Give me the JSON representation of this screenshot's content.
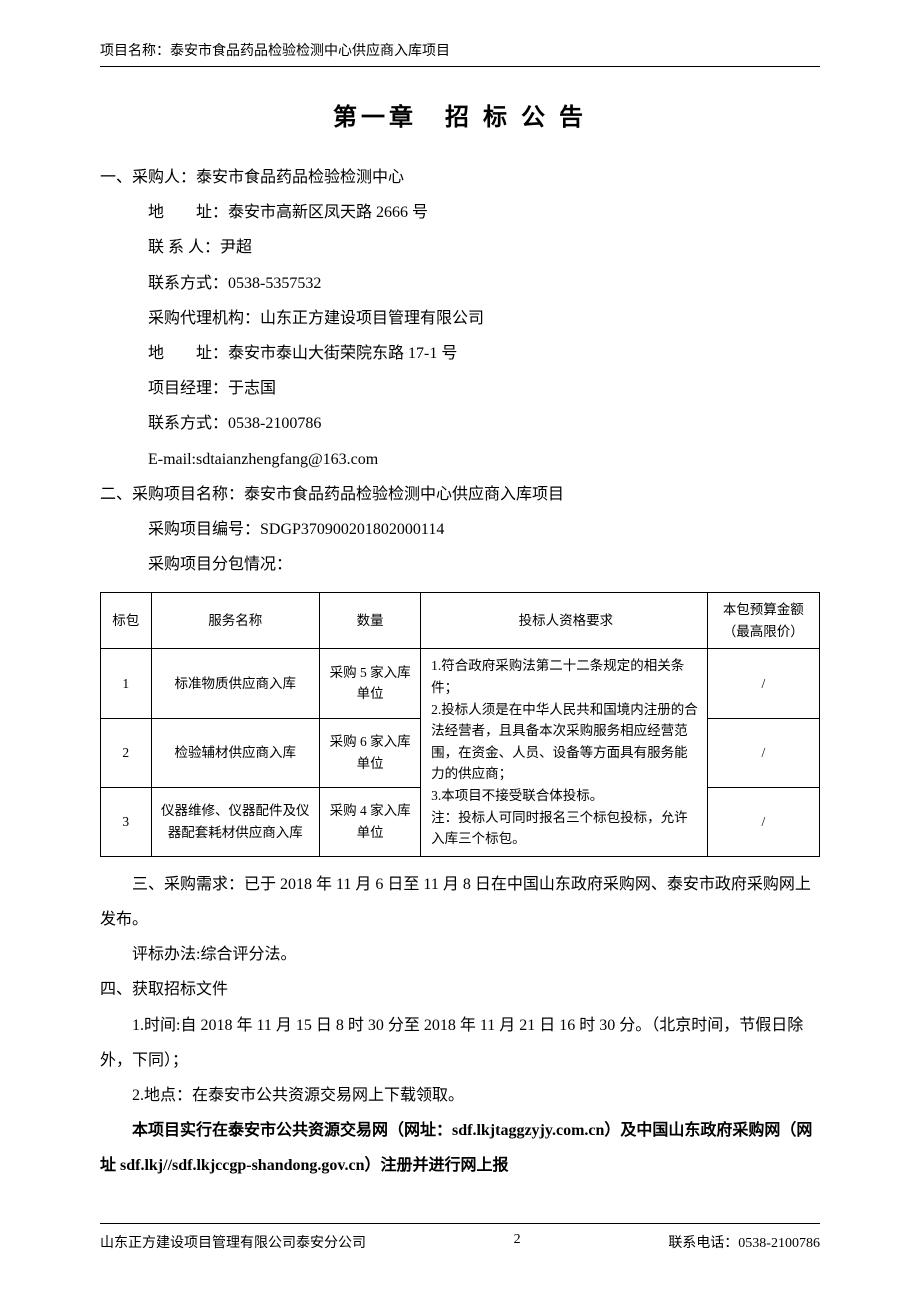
{
  "header": {
    "project_label": "项目名称：泰安市食品药品检验检测中心供应商入库项目"
  },
  "chapter_title": "第一章　招 标 公 告",
  "section1": {
    "line1": "一、采购人：泰安市食品药品检验检测中心",
    "addr": "地　　址：泰安市高新区凤天路 2666 号",
    "contact": "联 系 人：尹超",
    "phone": "联系方式：0538-5357532",
    "agency": "采购代理机构：山东正方建设项目管理有限公司",
    "agency_addr": "地　　址：泰安市泰山大街荣院东路 17-1 号",
    "pm": "项目经理：于志国",
    "agency_phone": "联系方式：0538-2100786",
    "email": "E-mail:sdtaianzhengfang@163.com"
  },
  "section2": {
    "line1": "二、采购项目名称：泰安市食品药品检验检测中心供应商入库项目",
    "code": "采购项目编号：SDGP370900201802000114",
    "split": "采购项目分包情况："
  },
  "table": {
    "headers": {
      "bp": "标包",
      "name": "服务名称",
      "qty": "数量",
      "req": "投标人资格要求",
      "budget": "本包预算金额（最高限价）"
    },
    "req_text": "1.符合政府采购法第二十二条规定的相关条件；\n2.投标人须是在中华人民共和国境内注册的合法经营者，且具备本次采购服务相应经营范围，在资金、人员、设备等方面具有服务能力的供应商；\n3.本项目不接受联合体投标。\n注：投标人可同时报名三个标包投标，允许入库三个标包。",
    "rows": [
      {
        "bp": "1",
        "name": "标准物质供应商入库",
        "qty": "采购 5 家入库单位",
        "budget": "/"
      },
      {
        "bp": "2",
        "name": "检验辅材供应商入库",
        "qty": "采购 6 家入库单位",
        "budget": "/"
      },
      {
        "bp": "3",
        "name": "仪器维修、仪器配件及仪器配套耗材供应商入库",
        "qty": "采购 4 家入库单位",
        "budget": "/"
      }
    ]
  },
  "section3": {
    "p1": "三、采购需求：已于 2018 年 11 月 6 日至 11 月 8 日在中国山东政府采购网、泰安市政府采购网上发布。",
    "p2": "评标办法:综合评分法。"
  },
  "section4": {
    "title": "四、获取招标文件",
    "p1": "1.时间:自 2018 年 11 月 15 日 8 时 30 分至 2018 年 11 月 21 日 16 时 30 分。（北京时间，节假日除外，下同）；",
    "p2": "2.地点：在泰安市公共资源交易网上下载领取。",
    "p3": "本项目实行在泰安市公共资源交易网（网址：sdf.lkjtaggzyjy.com.cn）及中国山东政府采购网（网址 sdf.lkj//sdf.lkjccgp-shandong.gov.cn）注册并进行网上报"
  },
  "footer": {
    "left": "山东正方建设项目管理有限公司泰安分公司",
    "mid": "2",
    "right": "联系电话：0538-2100786"
  }
}
